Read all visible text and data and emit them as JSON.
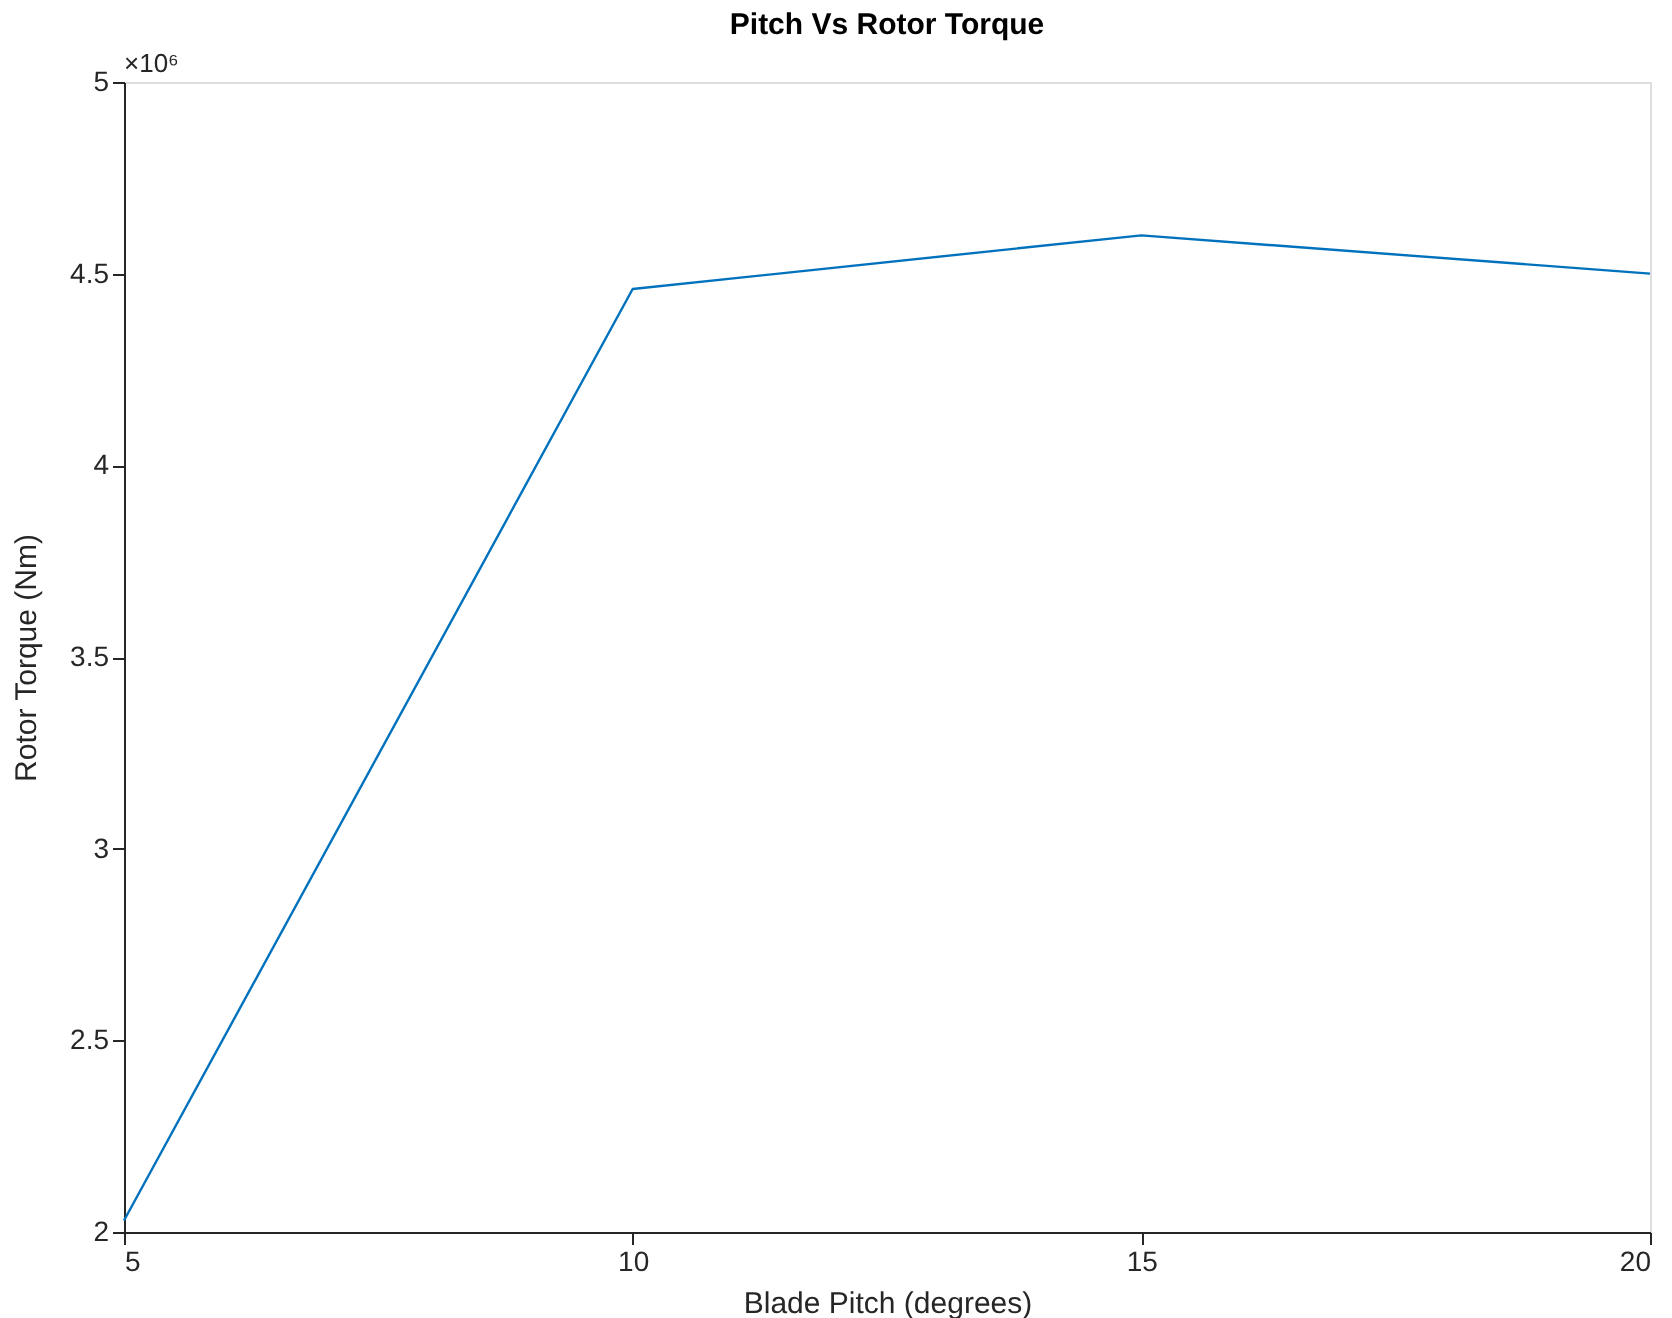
{
  "chart_data": {
    "type": "line",
    "title": "Pitch Vs Rotor Torque",
    "xlabel": "Blade Pitch (degrees)",
    "ylabel": "Rotor Torque (Nm)",
    "x": [
      5,
      10,
      15,
      20
    ],
    "series": [
      {
        "color": "#0072bd",
        "values": [
          2.03,
          4.46,
          4.6,
          4.5
        ]
      }
    ],
    "xlim": [
      5,
      20
    ],
    "xticks": [
      5,
      10,
      15,
      20
    ],
    "ylim": [
      2,
      5
    ],
    "yticks": [
      2,
      2.5,
      3,
      3.5,
      4,
      4.5,
      5
    ],
    "annotations": [
      "×10⁶"
    ],
    "grid": false,
    "legend": false,
    "line_style": "solid"
  }
}
